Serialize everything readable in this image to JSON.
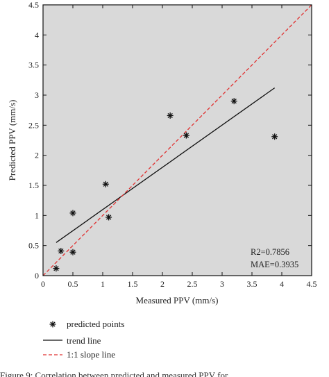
{
  "chart_data": {
    "type": "scatter",
    "xlabel": "Measured PPV (mm/s)",
    "ylabel": "Predicted PPV (mm/s)",
    "xlim": [
      0,
      4.5
    ],
    "ylim": [
      0,
      4.5
    ],
    "xticks": [
      0,
      0.5,
      1,
      1.5,
      2,
      2.5,
      3,
      3.5,
      4,
      4.5
    ],
    "yticks": [
      0,
      0.5,
      1,
      1.5,
      2,
      2.5,
      3,
      3.5,
      4,
      4.5
    ],
    "xtick_labels": [
      "0",
      "0.5",
      "1",
      "1.5",
      "2",
      "2.5",
      "3",
      "3.5",
      "4",
      "4.5"
    ],
    "ytick_labels": [
      "0",
      "0.5",
      "1",
      "1.5",
      "2",
      "2.5",
      "3",
      "3.5",
      "4",
      "4.5"
    ],
    "grid": false,
    "background": "#d9d9d9",
    "series": [
      {
        "name": "predicted points",
        "kind": "scatter",
        "marker": "asterisk",
        "color": "#111111",
        "x": [
          0.22,
          0.3,
          0.5,
          0.5,
          1.05,
          1.1,
          2.13,
          2.4,
          3.2,
          3.88
        ],
        "y": [
          0.12,
          0.41,
          0.39,
          1.04,
          1.52,
          0.97,
          2.66,
          2.33,
          2.9,
          2.31
        ]
      },
      {
        "name": "trend line",
        "kind": "line",
        "style": "solid",
        "color": "#111111",
        "x": [
          0.22,
          3.88
        ],
        "y": [
          0.55,
          3.12
        ]
      },
      {
        "name": "1:1 slope line",
        "kind": "line",
        "style": "dashed",
        "color": "#e03030",
        "x": [
          0,
          4.5
        ],
        "y": [
          0,
          4.5
        ]
      }
    ],
    "annotations": [
      "R2=0.7856",
      "MAE=0.3935"
    ],
    "legend_position": "bottom-left, below the plot"
  },
  "caption": "Figure 9: Correlation between predicted and measured PPV for"
}
